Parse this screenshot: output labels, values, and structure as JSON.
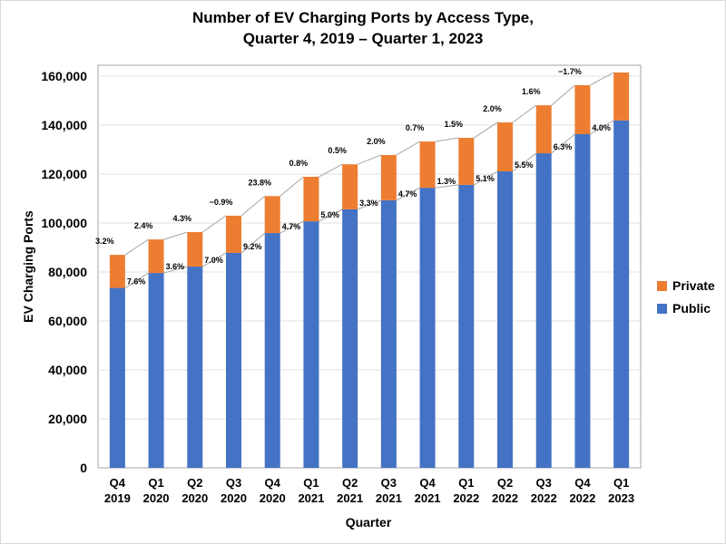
{
  "chart_data": {
    "type": "bar",
    "stacked": true,
    "title": "Number of EV Charging Ports by Access Type,",
    "subtitle": "Quarter 4, 2019 – Quarter 1, 2023",
    "xlabel": "Quarter",
    "ylabel": "EV Charging Ports",
    "ylim": [
      0,
      160000
    ],
    "yticks": [
      "0",
      "20,000",
      "40,000",
      "60,000",
      "80,000",
      "100,000",
      "120,000",
      "140,000",
      "160,000"
    ],
    "grid": true,
    "legend_position": "right",
    "categories": [
      [
        "Q4",
        "2019"
      ],
      [
        "Q1",
        "2020"
      ],
      [
        "Q2",
        "2020"
      ],
      [
        "Q3",
        "2020"
      ],
      [
        "Q4",
        "2020"
      ],
      [
        "Q1",
        "2021"
      ],
      [
        "Q2",
        "2021"
      ],
      [
        "Q3",
        "2021"
      ],
      [
        "Q4",
        "2021"
      ],
      [
        "Q1",
        "2022"
      ],
      [
        "Q2",
        "2022"
      ],
      [
        "Q3",
        "2022"
      ],
      [
        "Q4",
        "2022"
      ],
      [
        "Q1",
        "2023"
      ]
    ],
    "series": [
      {
        "name": "Public",
        "color": "#4472c4",
        "values": [
          73500,
          79600,
          82200,
          87800,
          95900,
          100700,
          105600,
          109300,
          114400,
          115600,
          121100,
          128500,
          136300,
          141900
        ],
        "labels": [
          "7.6%",
          "3.6%",
          "7.0%",
          "9.2%",
          "4.7%",
          "5.0%",
          "3.3%",
          "4.7%",
          "1.3%",
          "5.1%",
          "5.5%",
          "6.3%",
          "4.0%",
          ""
        ]
      },
      {
        "name": "Private",
        "color": "#ed7d31",
        "values": [
          13500,
          13700,
          14100,
          15200,
          15100,
          18200,
          18400,
          18500,
          18900,
          19200,
          20000,
          19600,
          20000,
          19600
        ],
        "labels": [
          "3.2%",
          "2.4%",
          "4.3%",
          "−0.9%",
          "23.8%",
          "0.8%",
          "0.5%",
          "2.0%",
          "0.7%",
          "1.5%",
          "2.0%",
          "1.6%",
          "−1.7%",
          ""
        ]
      }
    ]
  }
}
